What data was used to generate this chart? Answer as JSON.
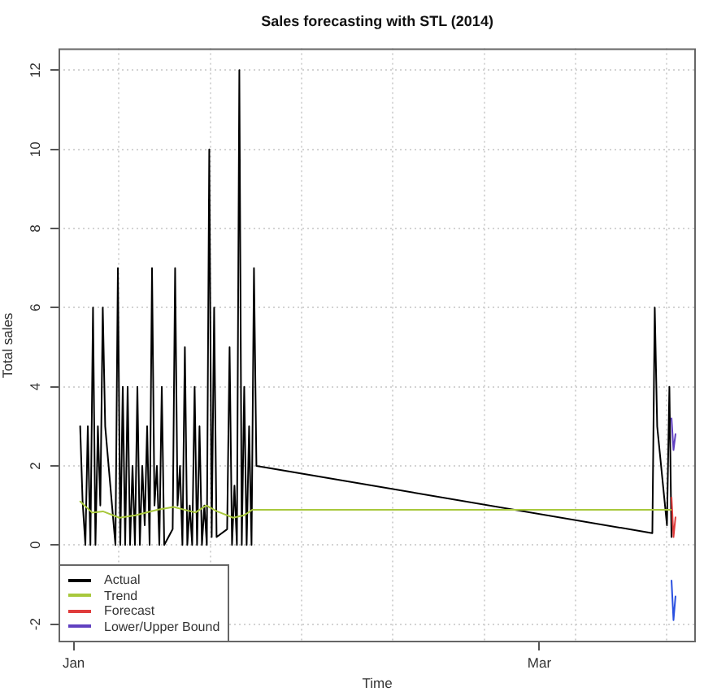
{
  "chart_data": {
    "type": "line",
    "title": "Sales forecasting with STL (2014)",
    "xlabel": "Time",
    "ylabel": "Total sales",
    "xlim": [
      "2013-12-30T02:00",
      "2014-03-20T20:00"
    ],
    "xticks": [
      {
        "value": "2014-01-01",
        "label": "Jan"
      },
      {
        "value": "2014-01-06T17:20",
        "label": null
      },
      {
        "value": "2014-01-18T07:07",
        "label": null
      },
      {
        "value": "2014-01-29T20:53",
        "label": null
      },
      {
        "value": "2014-02-10T10:40",
        "label": null
      },
      {
        "value": "2014-02-22T00:26",
        "label": null
      },
      {
        "value": "2014-03-01",
        "label": "Mar"
      },
      {
        "value": "2014-03-05T14:13",
        "label": null
      },
      {
        "value": "2014-03-17T04:00",
        "label": null
      }
    ],
    "ylim": [
      -2.46,
      12.55
    ],
    "yticks": [
      -2,
      0,
      2,
      4,
      6,
      8,
      10,
      12
    ],
    "grid": true,
    "legend": "bottom left",
    "series": [
      {
        "name": "Actual",
        "color": "#000000",
        "x": [
          "2014-01-01T19:47",
          "2014-01-02T03:11",
          "2014-01-02T11:36",
          "2014-01-02T19:01",
          "2014-01-03T02:55",
          "2014-01-03T10:50",
          "2014-01-03T18:15",
          "2014-01-04T01:40",
          "2014-01-04T09:05",
          "2014-01-04T16:30",
          "2014-01-04T23:55",
          "2014-01-06T07:04",
          "2014-01-06T14:29",
          "2014-01-06T21:53",
          "2014-01-07T05:19",
          "2014-01-07T12:43",
          "2014-01-07T20:08",
          "2014-01-08T03:34",
          "2014-01-08T10:58",
          "2014-01-08T18:23",
          "2014-01-09T01:48",
          "2014-01-09T09:13",
          "2014-01-09T16:38",
          "2014-01-10T00:03",
          "2014-01-10T07:28",
          "2014-01-10T14:53",
          "2014-01-10T22:18",
          "2014-01-11T05:43",
          "2014-01-11T13:08",
          "2014-01-11T20:33",
          "2014-01-12T03:58",
          "2014-01-12T11:23",
          "2014-01-13T13:05",
          "2014-01-13T20:31",
          "2014-01-14T03:55",
          "2014-01-14T11:20",
          "2014-01-14T18:45",
          "2014-01-15T02:10",
          "2014-01-15T09:35",
          "2014-01-15T17:00",
          "2014-01-16T00:25",
          "2014-01-16T07:50",
          "2014-01-16T15:15",
          "2014-01-16T22:40",
          "2014-01-17T06:05",
          "2014-01-17T13:30",
          "2014-01-17T20:55",
          "2014-01-18T04:20",
          "2014-01-18T11:45",
          "2014-01-18T19:10",
          "2014-01-19T02:35",
          "2014-01-20T10:43",
          "2014-01-20T18:08",
          "2014-01-21T01:33",
          "2014-01-21T08:58",
          "2014-01-21T16:23",
          "2014-01-21T23:47",
          "2014-01-22T07:13",
          "2014-01-22T14:38",
          "2014-01-22T22:02",
          "2014-01-23T05:28",
          "2014-01-23T12:52",
          "2014-01-23T20:17",
          "2014-01-24T03:43",
          "2014-03-15T07:40",
          "2014-03-15T15:00",
          "2014-03-15T22:24",
          "2014-03-17T04:06",
          "2014-03-17T11:30",
          "2014-03-17T17:54"
        ],
        "values": [
          3,
          1.1,
          0,
          3,
          0,
          6,
          0,
          3,
          1,
          6,
          3,
          0,
          7,
          0,
          4,
          0,
          4,
          0,
          2,
          0,
          4,
          0,
          2,
          0.5,
          3,
          0,
          7,
          1,
          2,
          0,
          4,
          0,
          0.4,
          7,
          1,
          2,
          0,
          5,
          0,
          1,
          0,
          4,
          0,
          3,
          0,
          1,
          0,
          10,
          0.2,
          6,
          0.2,
          0.4,
          5,
          0,
          1.5,
          0,
          12,
          0,
          4,
          0,
          3,
          0,
          7,
          2,
          0.3,
          6,
          3,
          0.5,
          4,
          0.2
        ]
      },
      {
        "name": "Trend",
        "color": "#a8c83c",
        "x": [
          "2014-01-01T20:00",
          "2014-01-03T08:00",
          "2014-01-04T17:00",
          "2014-01-06T19:00",
          "2014-01-08T20:00",
          "2014-01-11T14:00",
          "2014-01-13T16:00",
          "2014-01-16T10:00",
          "2014-01-17T19:00",
          "2014-01-19T04:00",
          "2014-01-21T05:00",
          "2014-01-22T14:00",
          "2014-01-23T15:00",
          "2014-03-17T18:00"
        ],
        "values": [
          1.1,
          0.82,
          0.85,
          0.69,
          0.75,
          0.89,
          0.96,
          0.82,
          1.0,
          0.85,
          0.69,
          0.75,
          0.89,
          0.89
        ]
      },
      {
        "name": "Forecast",
        "color": "#e03c3c",
        "x": [
          "2014-03-17T18:00",
          "2014-03-18T00:00",
          "2014-03-18T06:00"
        ],
        "values": [
          1.2,
          0.2,
          0.7
        ]
      },
      {
        "name": "Lower/Upper Bound",
        "color": "#6040c0",
        "x": [
          "2014-03-17T18:00",
          "2014-03-18T00:00",
          "2014-03-18T06:00"
        ],
        "values": [
          3.2,
          2.4,
          2.8
        ]
      },
      {
        "color": "#2a50e0",
        "x": [
          "2014-03-17T18:00",
          "2014-03-18T00:00",
          "2014-03-18T06:00"
        ],
        "values": [
          -0.9,
          -1.9,
          -1.3
        ]
      }
    ]
  }
}
